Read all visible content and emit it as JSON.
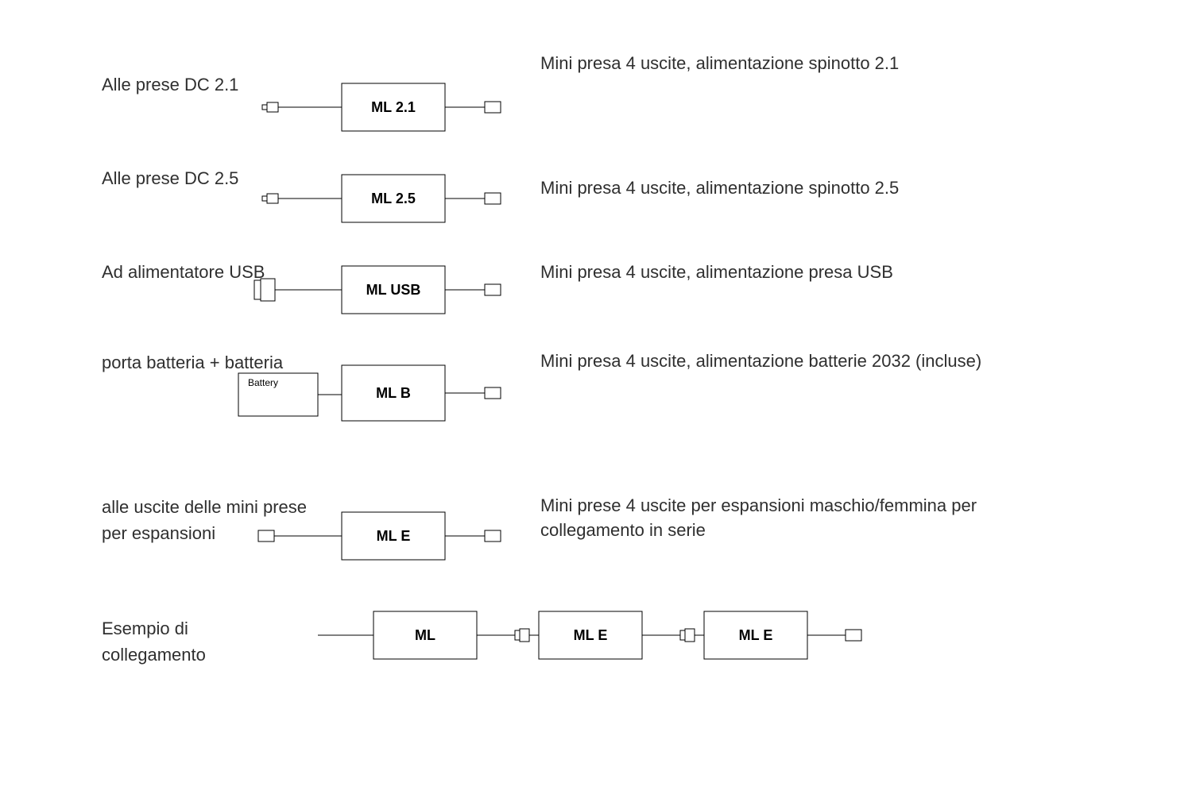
{
  "rows": [
    {
      "left": "Alle prese DC 2.1",
      "block": "ML   2.1",
      "right": "Mini presa 4 uscite, alimentazione spinotto 2.1",
      "leftY": 90,
      "svgY": 105,
      "rightY": 65,
      "kind": "dc"
    },
    {
      "left": "Alle prese DC 2.5",
      "block": "ML   2.5",
      "right": "Mini presa 4 uscite, alimentazione spinotto 2.5",
      "leftY": 208,
      "svgY": 220,
      "rightY": 222,
      "kind": "dc"
    },
    {
      "left": "Ad alimentatore USB",
      "block": "ML   USB",
      "right": "Mini presa 4 uscite, alimentazione presa USB",
      "leftY": 326,
      "svgY": 335,
      "rightY": 328,
      "kind": "usb"
    },
    {
      "left": "porta batteria + batteria",
      "block": "ML   B",
      "right": "Mini presa 4 uscite, alimentazione batterie 2032 (incluse)",
      "battery": "Battery",
      "leftY": 440,
      "svgY": 460,
      "rightY": 440,
      "kind": "battery"
    },
    {
      "left": "alle uscite delle mini prese\nper espansioni",
      "block": "ML   E",
      "right": "Mini prese 4 uscite per espansioni maschio/femmina per collegamento in serie",
      "leftY": 622,
      "svgY": 645,
      "rightY": 622,
      "kind": "exp"
    }
  ],
  "example": {
    "left": "Esempio di\ncollegamento",
    "blocks": [
      "ML",
      "ML   E",
      "ML   E"
    ],
    "leftY": 775,
    "svgY": 770
  },
  "style": {
    "stroke": "#000000",
    "bg": "#ffffff",
    "text": "#2f2f2f",
    "label_fontsize": 22,
    "block_font_weight": 700
  }
}
